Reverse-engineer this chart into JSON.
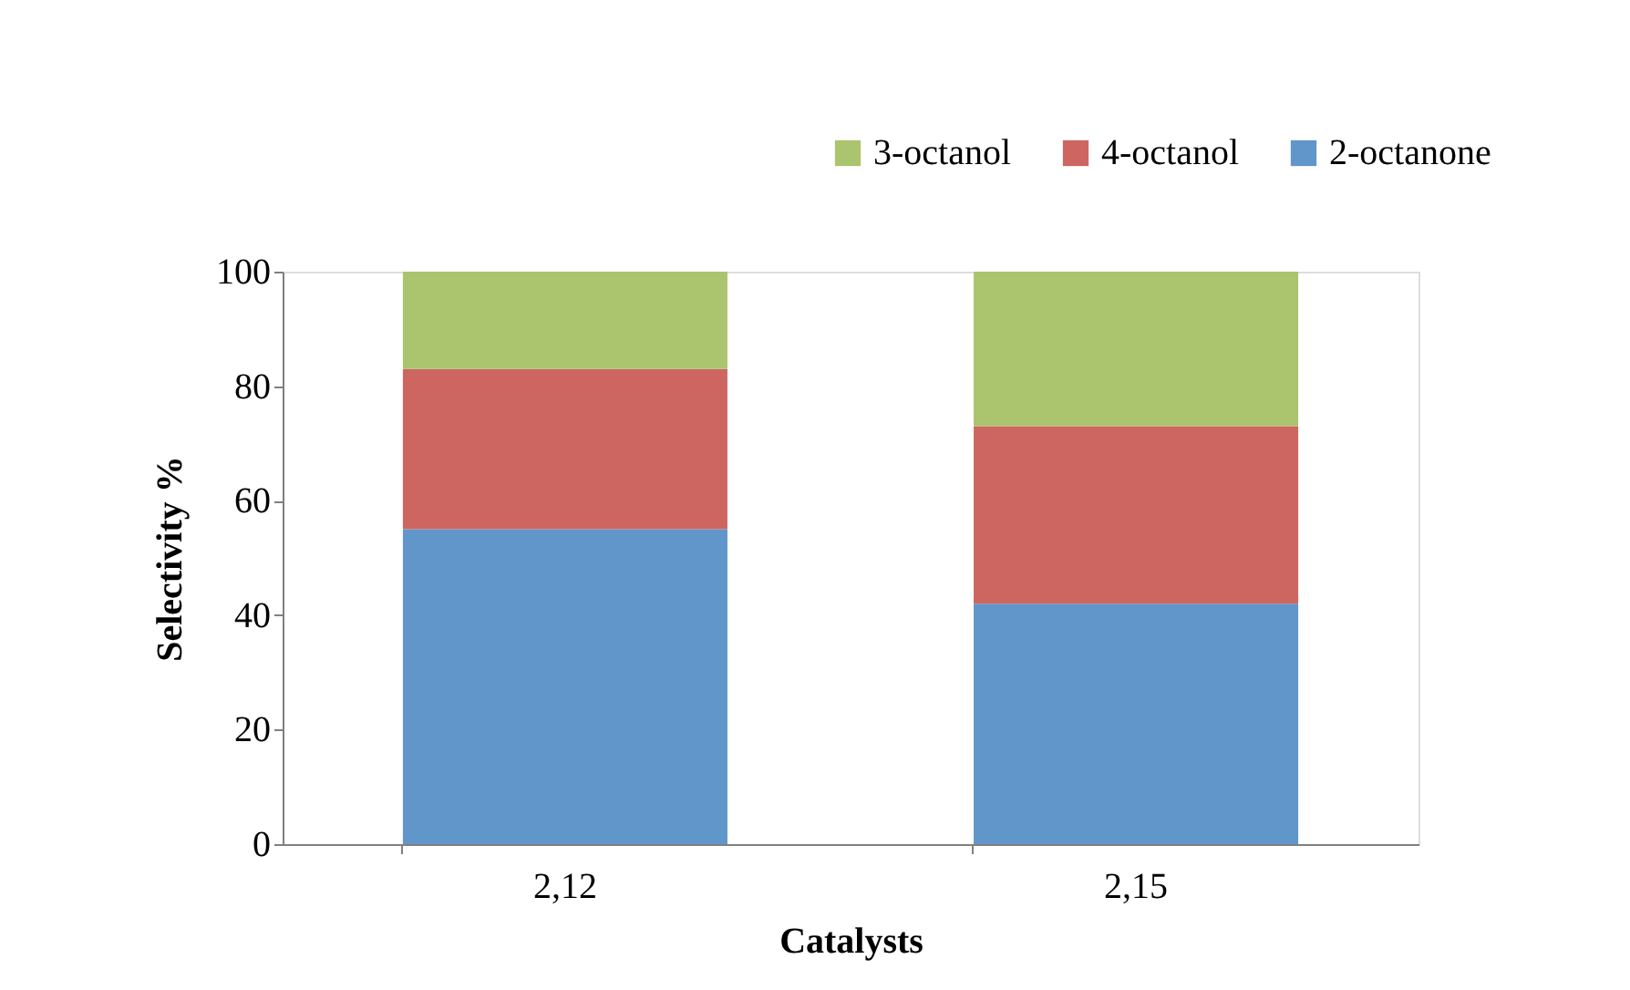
{
  "chart_data": {
    "type": "bar",
    "stacked": true,
    "xlabel": "Catalysts",
    "ylabel": "Selectivity %",
    "categories": [
      "2,12",
      "2,15"
    ],
    "series": [
      {
        "name": "2-octanone",
        "color": "#6096c9",
        "values": [
          55,
          42
        ]
      },
      {
        "name": "4-octanol",
        "color": "#cd6660",
        "values": [
          28,
          31
        ]
      },
      {
        "name": "3-octanol",
        "color": "#abc46e",
        "values": [
          17,
          27
        ]
      }
    ],
    "ylim": [
      0,
      100
    ],
    "yticks": [
      0,
      20,
      40,
      60,
      80,
      100
    ],
    "grid": false,
    "legend": "top right"
  }
}
